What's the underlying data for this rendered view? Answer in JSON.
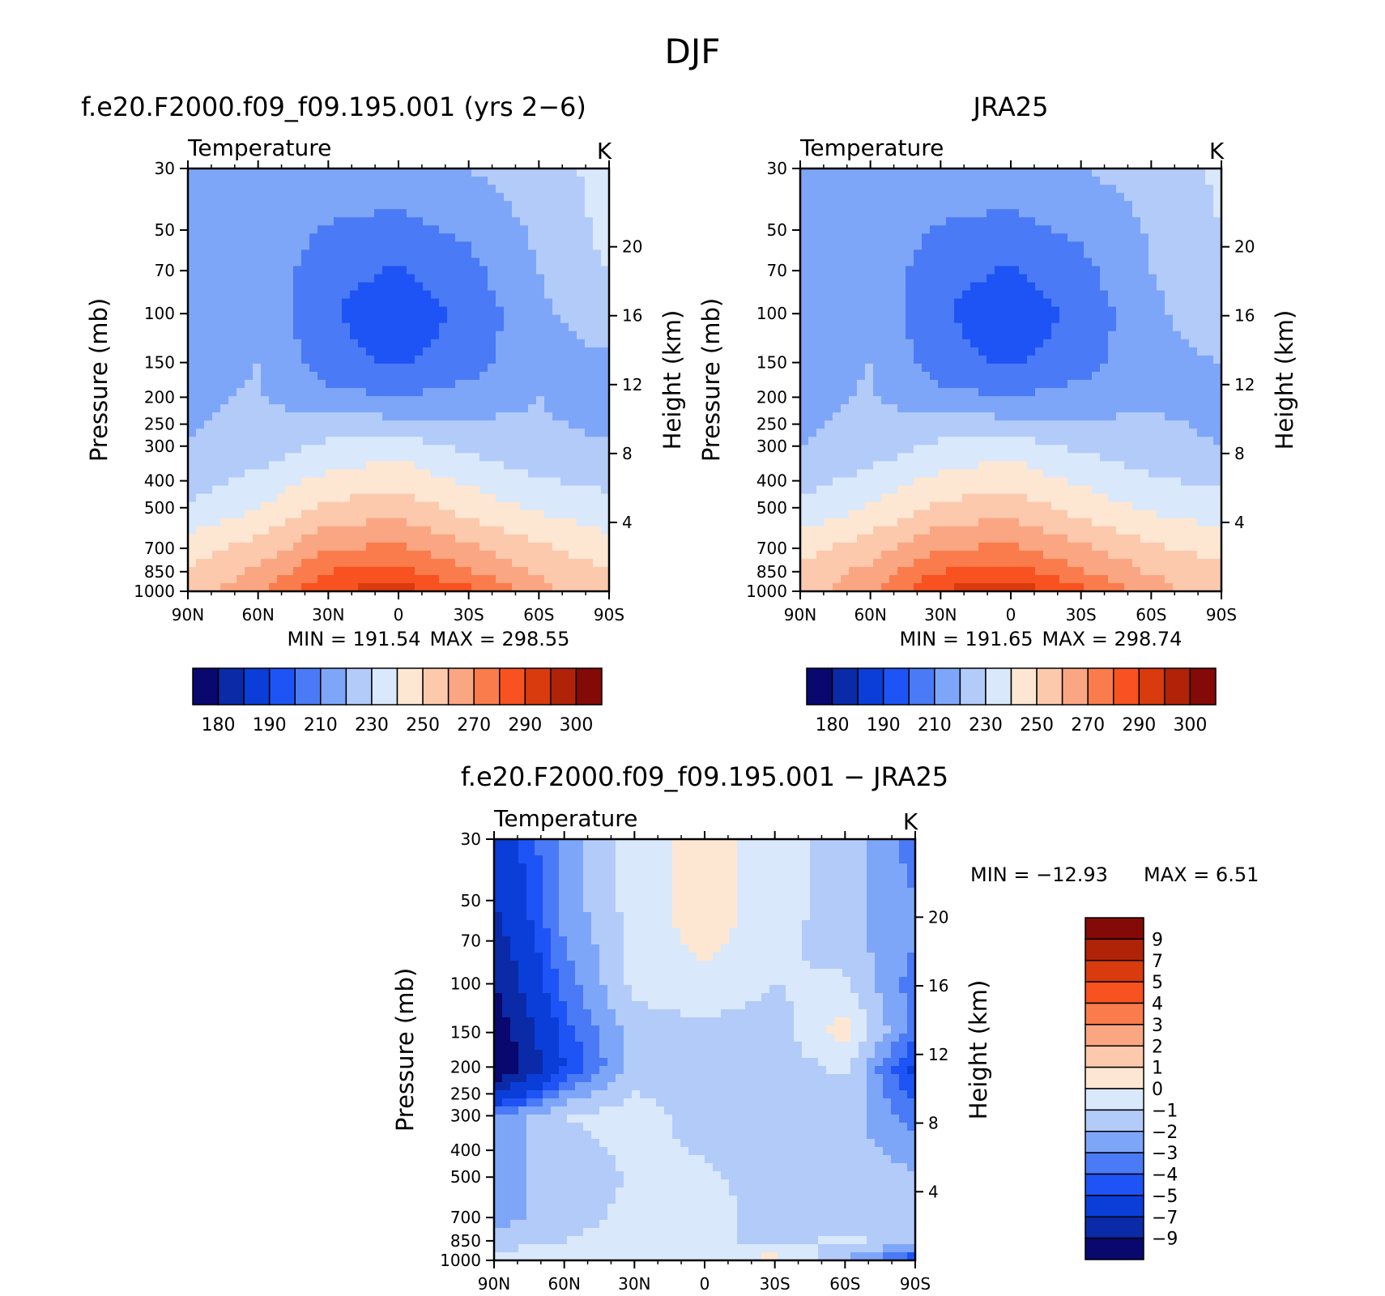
{
  "figure_title": "DJF",
  "colors": {
    "abs_palette": [
      "#08086e",
      "#0a2aa8",
      "#0b3ed8",
      "#1e54f5",
      "#4a7af5",
      "#7ea6f8",
      "#b3cbf9",
      "#d9e8fb",
      "#fde7d3",
      "#fcc9ad",
      "#fba683",
      "#fa7c4c",
      "#f75220",
      "#d93a0e",
      "#b02309",
      "#830a06"
    ],
    "diff_palette": [
      "#08086e",
      "#0a2aa8",
      "#0b3ed8",
      "#1e54f5",
      "#4a7af5",
      "#7ea6f8",
      "#b3cbf9",
      "#d9e8fb",
      "#fde7d3",
      "#fcc9ad",
      "#fba683",
      "#fa7c4c",
      "#f75220",
      "#d93a0e",
      "#b02309",
      "#830a06"
    ]
  },
  "chart_data": [
    {
      "type": "heatmap",
      "title": "f.e20.F2000.f09_f09.195.001 (yrs 2−6)",
      "subtitle_left": "Temperature",
      "subtitle_right": "K",
      "ylabel": "Pressure (mb)",
      "ylabel_right": "Height (km)",
      "x_ticks": [
        "90N",
        "60N",
        "30N",
        "0",
        "30S",
        "60S",
        "90S"
      ],
      "y_ticks": [
        "30",
        "50",
        "70",
        "100",
        "150",
        "200",
        "250",
        "300",
        "400",
        "500",
        "700",
        "850",
        "1000"
      ],
      "y_ticks_right": [
        "20",
        "16",
        "12",
        "8",
        "4"
      ],
      "min_label": "MIN = 191.54",
      "max_label": "MAX = 298.55",
      "colorbar_labels": [
        "180",
        "190",
        "210",
        "230",
        "250",
        "270",
        "290",
        "300"
      ],
      "lat": [
        -90,
        -60,
        -30,
        0,
        30,
        60,
        90
      ],
      "pressure": [
        30,
        50,
        70,
        100,
        150,
        200,
        300,
        500,
        700,
        850,
        1000
      ],
      "values": [
        [
          210,
          214,
          217,
          216,
          220,
          226,
          233
        ],
        [
          212,
          216,
          209,
          207,
          212,
          222,
          233
        ],
        [
          213,
          217,
          204,
          199,
          207,
          220,
          230
        ],
        [
          214,
          218,
          201,
          193,
          203,
          218,
          226
        ],
        [
          216,
          220,
          205,
          198,
          206,
          217,
          218
        ],
        [
          218,
          221,
          213,
          210,
          214,
          220,
          215
        ],
        [
          220,
          224,
          232,
          235,
          228,
          222,
          221
        ],
        [
          231,
          240,
          252,
          256,
          246,
          238,
          233
        ],
        [
          245,
          254,
          269,
          272,
          262,
          252,
          244
        ],
        [
          252,
          262,
          280,
          284,
          270,
          258,
          250
        ],
        [
          254,
          267,
          290,
          296,
          283,
          264,
          250
        ]
      ]
    },
    {
      "type": "heatmap",
      "title": "JRA25",
      "subtitle_left": "Temperature",
      "subtitle_right": "K",
      "ylabel": "Pressure (mb)",
      "ylabel_right": "Height (km)",
      "x_ticks": [
        "90N",
        "60N",
        "30N",
        "0",
        "30S",
        "60S",
        "90S"
      ],
      "y_ticks": [
        "30",
        "50",
        "70",
        "100",
        "150",
        "200",
        "250",
        "300",
        "400",
        "500",
        "700",
        "850",
        "1000"
      ],
      "y_ticks_right": [
        "20",
        "16",
        "12",
        "8",
        "4"
      ],
      "min_label": "MIN = 191.65",
      "max_label": "MAX = 298.74",
      "colorbar_labels": [
        "180",
        "190",
        "210",
        "230",
        "250",
        "270",
        "290",
        "300"
      ],
      "lat": [
        -90,
        -60,
        -30,
        0,
        30,
        60,
        90
      ],
      "pressure": [
        30,
        50,
        70,
        100,
        150,
        200,
        300,
        500,
        700,
        850,
        1000
      ],
      "values": [
        [
          210,
          214,
          217,
          216,
          220,
          224,
          232
        ],
        [
          211,
          216,
          209,
          207,
          212,
          221,
          230
        ],
        [
          212,
          217,
          204,
          199,
          207,
          220,
          228
        ],
        [
          213,
          218,
          201,
          193,
          203,
          218,
          226
        ],
        [
          215,
          220,
          205,
          198,
          206,
          217,
          220
        ],
        [
          217,
          221,
          213,
          210,
          214,
          219,
          217
        ],
        [
          220,
          224,
          232,
          235,
          228,
          223,
          220
        ],
        [
          232,
          241,
          252,
          256,
          246,
          238,
          234
        ],
        [
          246,
          255,
          269,
          272,
          262,
          252,
          246
        ],
        [
          253,
          263,
          280,
          285,
          271,
          259,
          252
        ],
        [
          255,
          268,
          291,
          297,
          284,
          265,
          252
        ]
      ]
    },
    {
      "type": "heatmap",
      "title": "f.e20.F2000.f09_f09.195.001 − JRA25",
      "subtitle_left": "Temperature",
      "subtitle_right": "K",
      "ylabel": "Pressure (mb)",
      "ylabel_right": "Height (km)",
      "x_ticks": [
        "90N",
        "60N",
        "30N",
        "0",
        "30S",
        "60S",
        "90S"
      ],
      "y_ticks": [
        "30",
        "50",
        "70",
        "100",
        "150",
        "200",
        "250",
        "300",
        "400",
        "500",
        "700",
        "850",
        "1000"
      ],
      "y_ticks_right": [
        "20",
        "16",
        "12",
        "8",
        "4"
      ],
      "min_label": "MIN = −12.93",
      "max_label": "MAX =    6.51",
      "colorbar_labels": [
        "9",
        "7",
        "5",
        "4",
        "3",
        "2",
        "1",
        "0",
        "−1",
        "−2",
        "−3",
        "−4",
        "−5",
        "−7",
        "−9"
      ],
      "lat": [
        -90,
        -60,
        -30,
        0,
        30,
        60,
        90
      ],
      "pressure": [
        30,
        50,
        70,
        100,
        150,
        200,
        300,
        500,
        700,
        850,
        1000
      ],
      "values": [
        [
          -6.5,
          -2.5,
          -0.5,
          0.5,
          -0.5,
          -1.5,
          -3.5
        ],
        [
          -7,
          -2.5,
          -0.5,
          0.5,
          -0.5,
          -1.5,
          -3
        ],
        [
          -8,
          -3,
          -0.7,
          0.4,
          -0.7,
          -1.5,
          -3
        ],
        [
          -9,
          -3.5,
          -0.7,
          -0.3,
          -1,
          -0.8,
          -3.5
        ],
        [
          -10.5,
          -4.5,
          -1.5,
          -1.3,
          -1.5,
          0.5,
          -3.5
        ],
        [
          -11.5,
          -5,
          -1.5,
          -2,
          -1.5,
          -0.8,
          -5.5
        ],
        [
          -3,
          -1,
          -0.5,
          -1.5,
          -1.8,
          -1.5,
          -3.5
        ],
        [
          -2,
          -2,
          -0.8,
          -0.8,
          -1.5,
          -1.5,
          -1.8
        ],
        [
          -2.5,
          -1.5,
          -0.6,
          -0.5,
          -1.5,
          -1.5,
          -1.8
        ],
        [
          -1.5,
          -1,
          -0.5,
          -0.5,
          -1.5,
          -0.7,
          -1.5
        ],
        [
          -0.5,
          -0.3,
          -0.2,
          -0.3,
          0.5,
          -2,
          -5
        ]
      ]
    }
  ]
}
